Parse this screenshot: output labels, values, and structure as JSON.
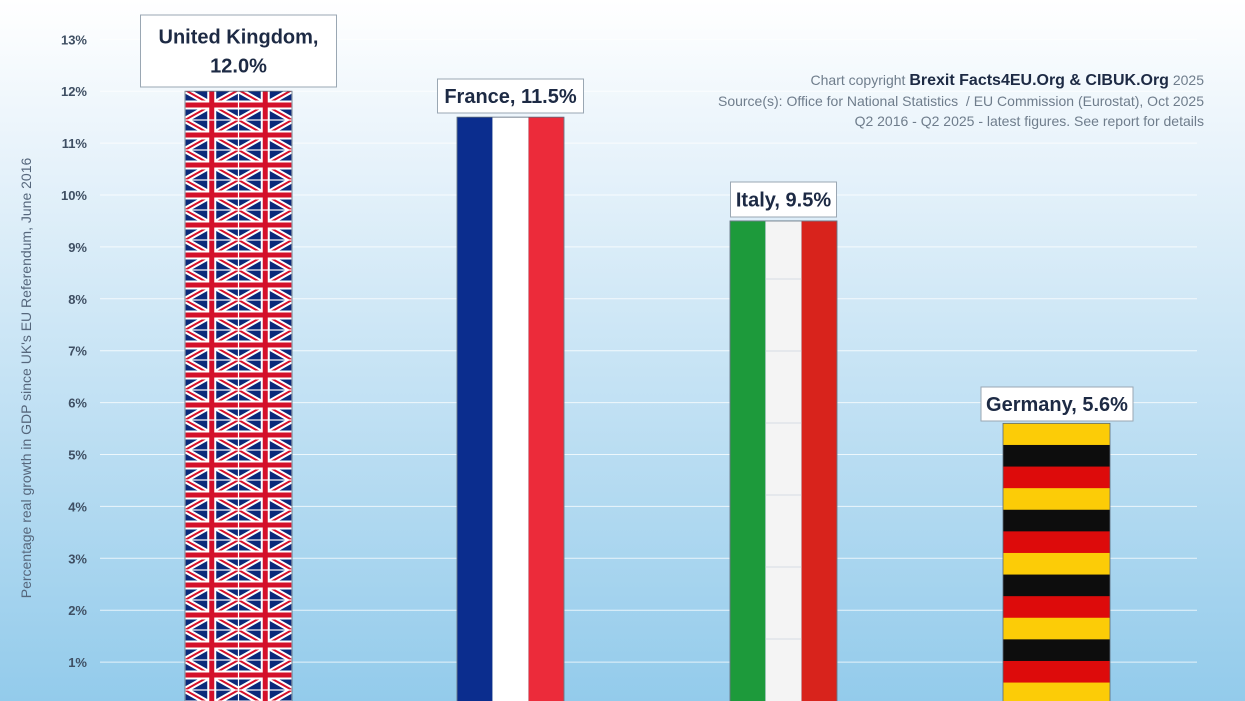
{
  "chart_data": {
    "type": "bar",
    "categories": [
      "United Kingdom",
      "France",
      "Italy",
      "Germany"
    ],
    "values": [
      12.0,
      11.5,
      9.5,
      5.6
    ],
    "data_labels": [
      "United Kingdom,\n12.0%",
      "France, 11.5%",
      "Italy, 9.5%",
      "Germany, 5.6%"
    ],
    "bar_fills": [
      "union-jack-flag",
      "france-tricolour",
      "italy-tricolour",
      "germany-stripes"
    ],
    "ylabel": "Percentage real growth in GDP since UK's EU Referendum, June 2016",
    "xlabel": "",
    "y_ticks": [
      "1%",
      "2%",
      "3%",
      "4%",
      "5%",
      "6%",
      "7%",
      "8%",
      "9%",
      "10%",
      "11%",
      "12%",
      "13%"
    ],
    "ylim": [
      0,
      13.5
    ],
    "grid": true,
    "legend": "none"
  },
  "credits": {
    "copyright_prefix": "Chart copyright",
    "copyright_brand": "Brexit Facts4EU.Org & CIBUK.Org",
    "copyright_year": "2025",
    "sources": "Source(s): Office for National Statistics  / EU Commission (Eurostat), Oct 2025",
    "period": "Q2 2016 - Q2 2025 - latest figures. See report for details"
  },
  "colors": {
    "uk_blue": "#0b2a7a",
    "uk_red": "#d4102a",
    "france_blue": "#0b2d8e",
    "france_red": "#ec2b3a",
    "italy_green": "#1d9a3b",
    "italy_red": "#d8231c",
    "germany_black": "#0d0d0d",
    "germany_red": "#dd0b0b",
    "germany_gold": "#fccc07",
    "label_text": "#1d2a44"
  }
}
